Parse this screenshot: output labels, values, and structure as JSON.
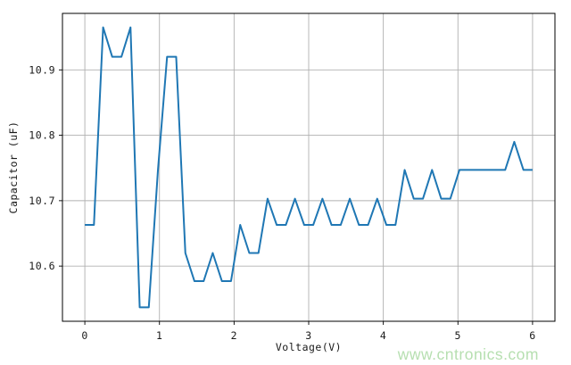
{
  "figure": {
    "background": "#ffffff",
    "watermark": {
      "text": "www.cntronics.com",
      "color": "#b6dfb0"
    }
  },
  "chart_data": {
    "type": "line",
    "title": "",
    "xlabel": "Voltage(V)",
    "ylabel": "Capacitor (uF)",
    "x": [
      0.0,
      0.122,
      0.245,
      0.367,
      0.49,
      0.612,
      0.735,
      0.857,
      0.98,
      1.102,
      1.224,
      1.347,
      1.469,
      1.592,
      1.714,
      1.837,
      1.959,
      2.082,
      2.204,
      2.327,
      2.449,
      2.571,
      2.694,
      2.816,
      2.939,
      3.061,
      3.184,
      3.306,
      3.429,
      3.551,
      3.673,
      3.796,
      3.918,
      4.041,
      4.163,
      4.286,
      4.408,
      4.531,
      4.653,
      4.776,
      4.898,
      5.02,
      5.143,
      5.265,
      5.388,
      5.51,
      5.633,
      5.755,
      5.878,
      6.0
    ],
    "y": [
      10.663,
      10.663,
      10.965,
      10.92,
      10.92,
      10.965,
      10.537,
      10.537,
      10.747,
      10.92,
      10.92,
      10.62,
      10.577,
      10.577,
      10.62,
      10.577,
      10.577,
      10.663,
      10.62,
      10.62,
      10.703,
      10.663,
      10.663,
      10.703,
      10.663,
      10.663,
      10.703,
      10.663,
      10.663,
      10.703,
      10.663,
      10.663,
      10.703,
      10.663,
      10.663,
      10.747,
      10.703,
      10.703,
      10.747,
      10.703,
      10.703,
      10.747,
      10.747,
      10.747,
      10.747,
      10.747,
      10.747,
      10.79,
      10.747,
      10.747
    ],
    "xlim": [
      -0.3,
      6.3
    ],
    "ylim": [
      10.5156,
      10.9864
    ],
    "xticks": {
      "values": [
        0,
        1,
        2,
        3,
        4,
        5,
        6
      ],
      "labels": [
        "0",
        "1",
        "2",
        "3",
        "4",
        "5",
        "6"
      ]
    },
    "yticks": {
      "values": [
        10.6,
        10.7,
        10.8,
        10.9
      ],
      "labels": [
        "10.6",
        "10.7",
        "10.8",
        "10.9"
      ]
    },
    "grid": true,
    "legend": "none",
    "line_color": "#1f77b4",
    "line_width": 2,
    "grid_color": "#b0b0b0",
    "spine_color": "#000000"
  }
}
